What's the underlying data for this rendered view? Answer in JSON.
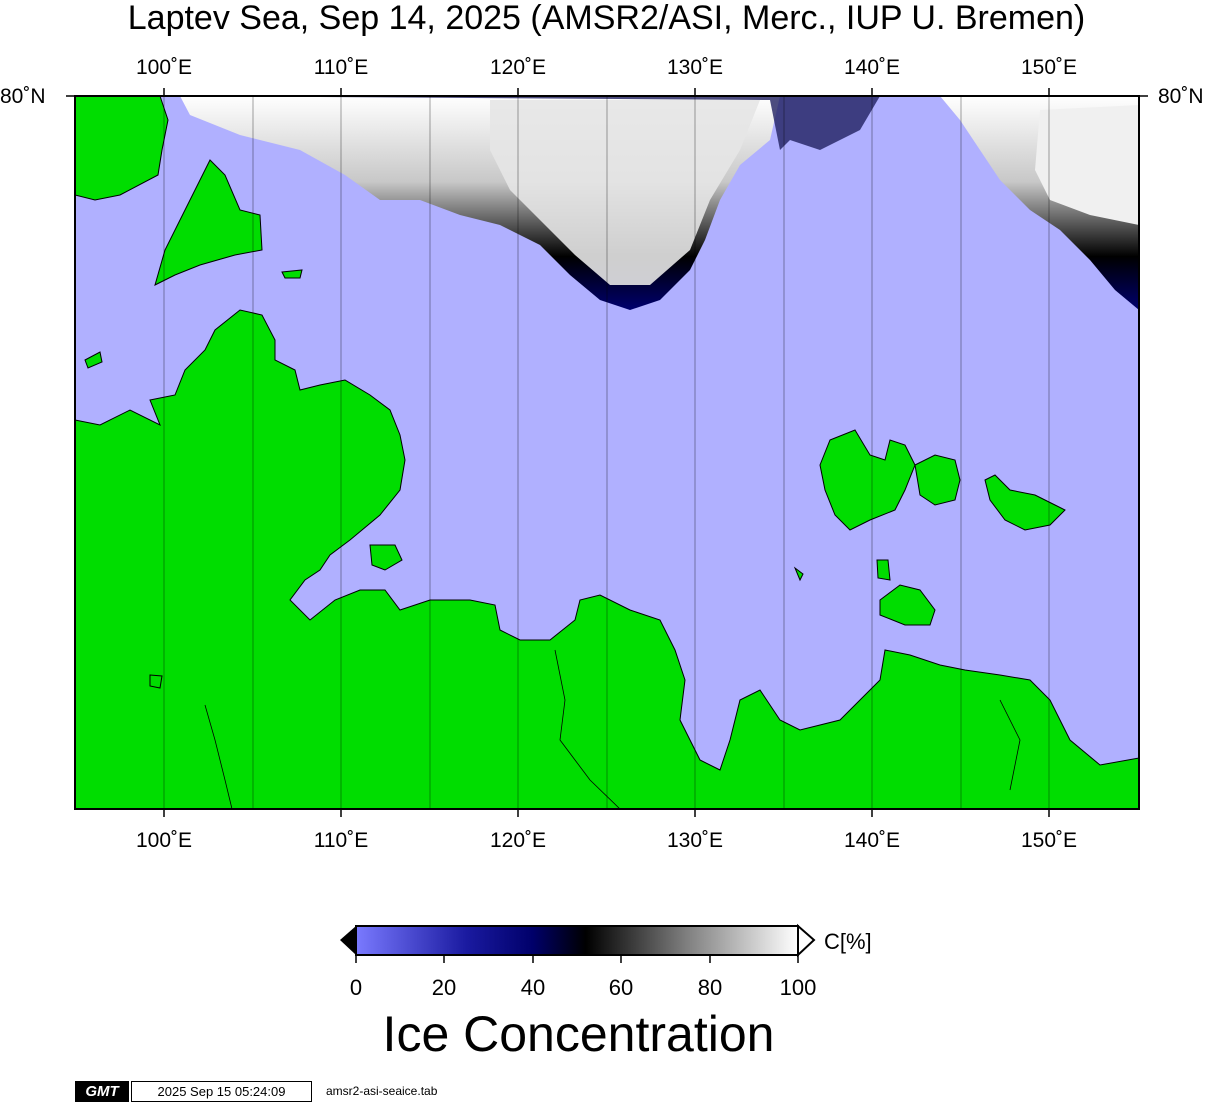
{
  "title": "Laptev Sea, Sep 14, 2025 (AMSR2/ASI, Merc., IUP U. Bremen)",
  "map": {
    "lon_labels": [
      "100˚E",
      "110˚E",
      "120˚E",
      "130˚E",
      "140˚E",
      "150˚E"
    ],
    "lat_labels": [
      "80˚N",
      "80˚N"
    ],
    "colors": {
      "water": "#b0b0ff",
      "land": "#00dd00",
      "coast": "#000000",
      "grid": "#000000"
    }
  },
  "colorbar": {
    "ticks": [
      "0",
      "20",
      "40",
      "60",
      "80",
      "100"
    ],
    "unit": "C[%]",
    "title": "Ice Concentration",
    "colors": [
      "#7070ff",
      "#00006e",
      "#000000",
      "#ffffff"
    ]
  },
  "footer": {
    "logo": "GMT",
    "timestamp": "2025 Sep 15 05:24:09",
    "source": "amsr2-asi-seaice.tab"
  }
}
